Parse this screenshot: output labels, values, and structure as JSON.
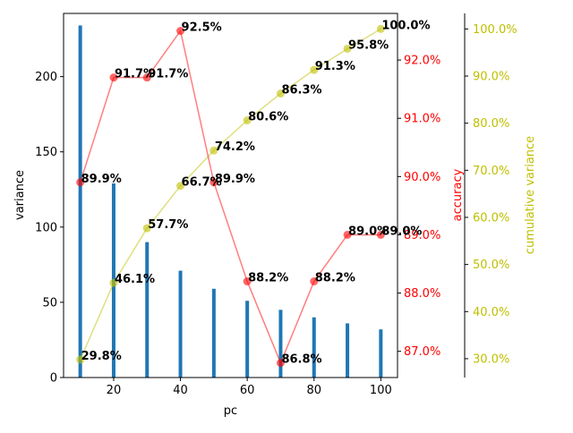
{
  "chart_data": {
    "type": "bar",
    "title": "",
    "xlabel": "pc",
    "ylabel": "variance",
    "ylabel_right1": "accuracy",
    "ylabel_right2": "cumulative variance",
    "x": [
      10,
      20,
      30,
      40,
      50,
      60,
      70,
      80,
      90,
      100
    ],
    "x_ticks": [
      20,
      40,
      60,
      80,
      100
    ],
    "x_tick_labels": [
      "20",
      "40",
      "60",
      "80",
      "100"
    ],
    "xlim": [
      5,
      105
    ],
    "ylim": [
      0,
      242
    ],
    "y_ticks": [
      0,
      50,
      100,
      150,
      200
    ],
    "y_tick_labels": [
      "0",
      "50",
      "100",
      "150",
      "200"
    ],
    "ylim_accuracy": [
      86.55,
      92.8
    ],
    "accuracy_ticks": [
      87,
      88,
      89,
      90,
      91,
      92
    ],
    "accuracy_tick_labels": [
      "87.0%",
      "88.0%",
      "89.0%",
      "90.0%",
      "91.0%",
      "92.0%"
    ],
    "ylim_cumulative": [
      26,
      103.3
    ],
    "cumulative_ticks": [
      30,
      40,
      50,
      60,
      70,
      80,
      90,
      100
    ],
    "cumulative_tick_labels": [
      "30.0%",
      "40.0%",
      "50.0%",
      "60.0%",
      "70.0%",
      "80.0%",
      "90.0%",
      "100.0%"
    ],
    "grid": false,
    "series": [
      {
        "axis": "left",
        "type": "bar",
        "color": "#1f77b4",
        "values": [
          234,
          129,
          90,
          71,
          59,
          51,
          45,
          40,
          36,
          32
        ]
      },
      {
        "axis": "right1",
        "type": "line",
        "color": "#ff0000",
        "values": [
          89.9,
          91.7,
          91.7,
          92.5,
          89.9,
          88.2,
          86.8,
          88.2,
          89.0,
          89.0
        ],
        "labels": [
          "89.9%",
          "91.7%",
          "91.7%",
          "92.5%",
          "89.9%",
          "88.2%",
          "86.8%",
          "88.2%",
          "89.0%",
          "89.0%"
        ]
      },
      {
        "axis": "right2",
        "type": "line",
        "color": "#bfbf00",
        "values": [
          29.8,
          46.1,
          57.7,
          66.7,
          74.2,
          80.6,
          86.3,
          91.3,
          95.8,
          100.0
        ],
        "labels": [
          "29.8%",
          "46.1%",
          "57.7%",
          "66.7%",
          "74.2%",
          "80.6%",
          "86.3%",
          "91.3%",
          "95.8%",
          "100.0%"
        ]
      }
    ]
  }
}
